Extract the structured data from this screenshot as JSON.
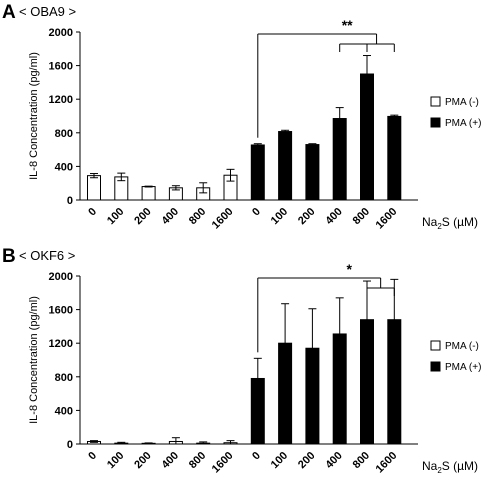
{
  "chart_data": [
    {
      "type": "bar",
      "panel_label": "A",
      "title": "< OBA9 >",
      "ylabel": "IL-8 Concentration (pg/ml)",
      "xlabel_prefix": "Na",
      "xlabel_sub": "2",
      "xlabel_suffix": "S (µM)",
      "ylim": [
        0,
        2000
      ],
      "yticks": [
        0,
        400,
        800,
        1200,
        1600,
        2000
      ],
      "categories": [
        "0",
        "100",
        "200",
        "400",
        "800",
        "1600",
        "0",
        "100",
        "200",
        "400",
        "800",
        "1600"
      ],
      "series": [
        {
          "name": "PMA (-)",
          "color": "#ffffff",
          "values": [
            290,
            275,
            160,
            145,
            145,
            295,
            null,
            null,
            null,
            null,
            null,
            null
          ],
          "errors": [
            25,
            45,
            5,
            25,
            60,
            70,
            null,
            null,
            null,
            null,
            null,
            null
          ]
        },
        {
          "name": "PMA (+)",
          "color": "#000000",
          "values": [
            null,
            null,
            null,
            null,
            null,
            null,
            655,
            815,
            660,
            970,
            1500,
            995
          ],
          "errors": [
            null,
            null,
            null,
            null,
            null,
            null,
            15,
            15,
            10,
            130,
            220,
            15
          ]
        }
      ],
      "significance": [
        {
          "label": "**",
          "from": 6,
          "to": [
            9,
            10,
            11
          ]
        }
      ],
      "grid": false,
      "legend_position": "right"
    },
    {
      "type": "bar",
      "panel_label": "B",
      "title": "< OKF6 >",
      "ylabel": "IL-8 Concentration (pg/ml)",
      "xlabel_prefix": "Na",
      "xlabel_sub": "2",
      "xlabel_suffix": "S (µM)",
      "ylim": [
        0,
        2000
      ],
      "yticks": [
        0,
        400,
        800,
        1200,
        1600,
        2000
      ],
      "categories": [
        "0",
        "100",
        "200",
        "400",
        "800",
        "1600",
        "0",
        "100",
        "200",
        "400",
        "800",
        "1600"
      ],
      "series": [
        {
          "name": "PMA (-)",
          "color": "#ffffff",
          "values": [
            30,
            10,
            8,
            30,
            10,
            15,
            null,
            null,
            null,
            null,
            null,
            null
          ],
          "errors": [
            10,
            10,
            5,
            45,
            15,
            25,
            null,
            null,
            null,
            null,
            null,
            null
          ]
        },
        {
          "name": "PMA (+)",
          "color": "#000000",
          "values": [
            null,
            null,
            null,
            null,
            null,
            null,
            780,
            1200,
            1140,
            1310,
            1480,
            1480
          ],
          "errors": [
            null,
            null,
            null,
            null,
            null,
            null,
            240,
            470,
            470,
            430,
            460,
            480
          ]
        }
      ],
      "significance": [
        {
          "label": "*",
          "from": 6,
          "to": [
            10,
            11
          ]
        }
      ],
      "grid": false,
      "legend_position": "right"
    }
  ]
}
